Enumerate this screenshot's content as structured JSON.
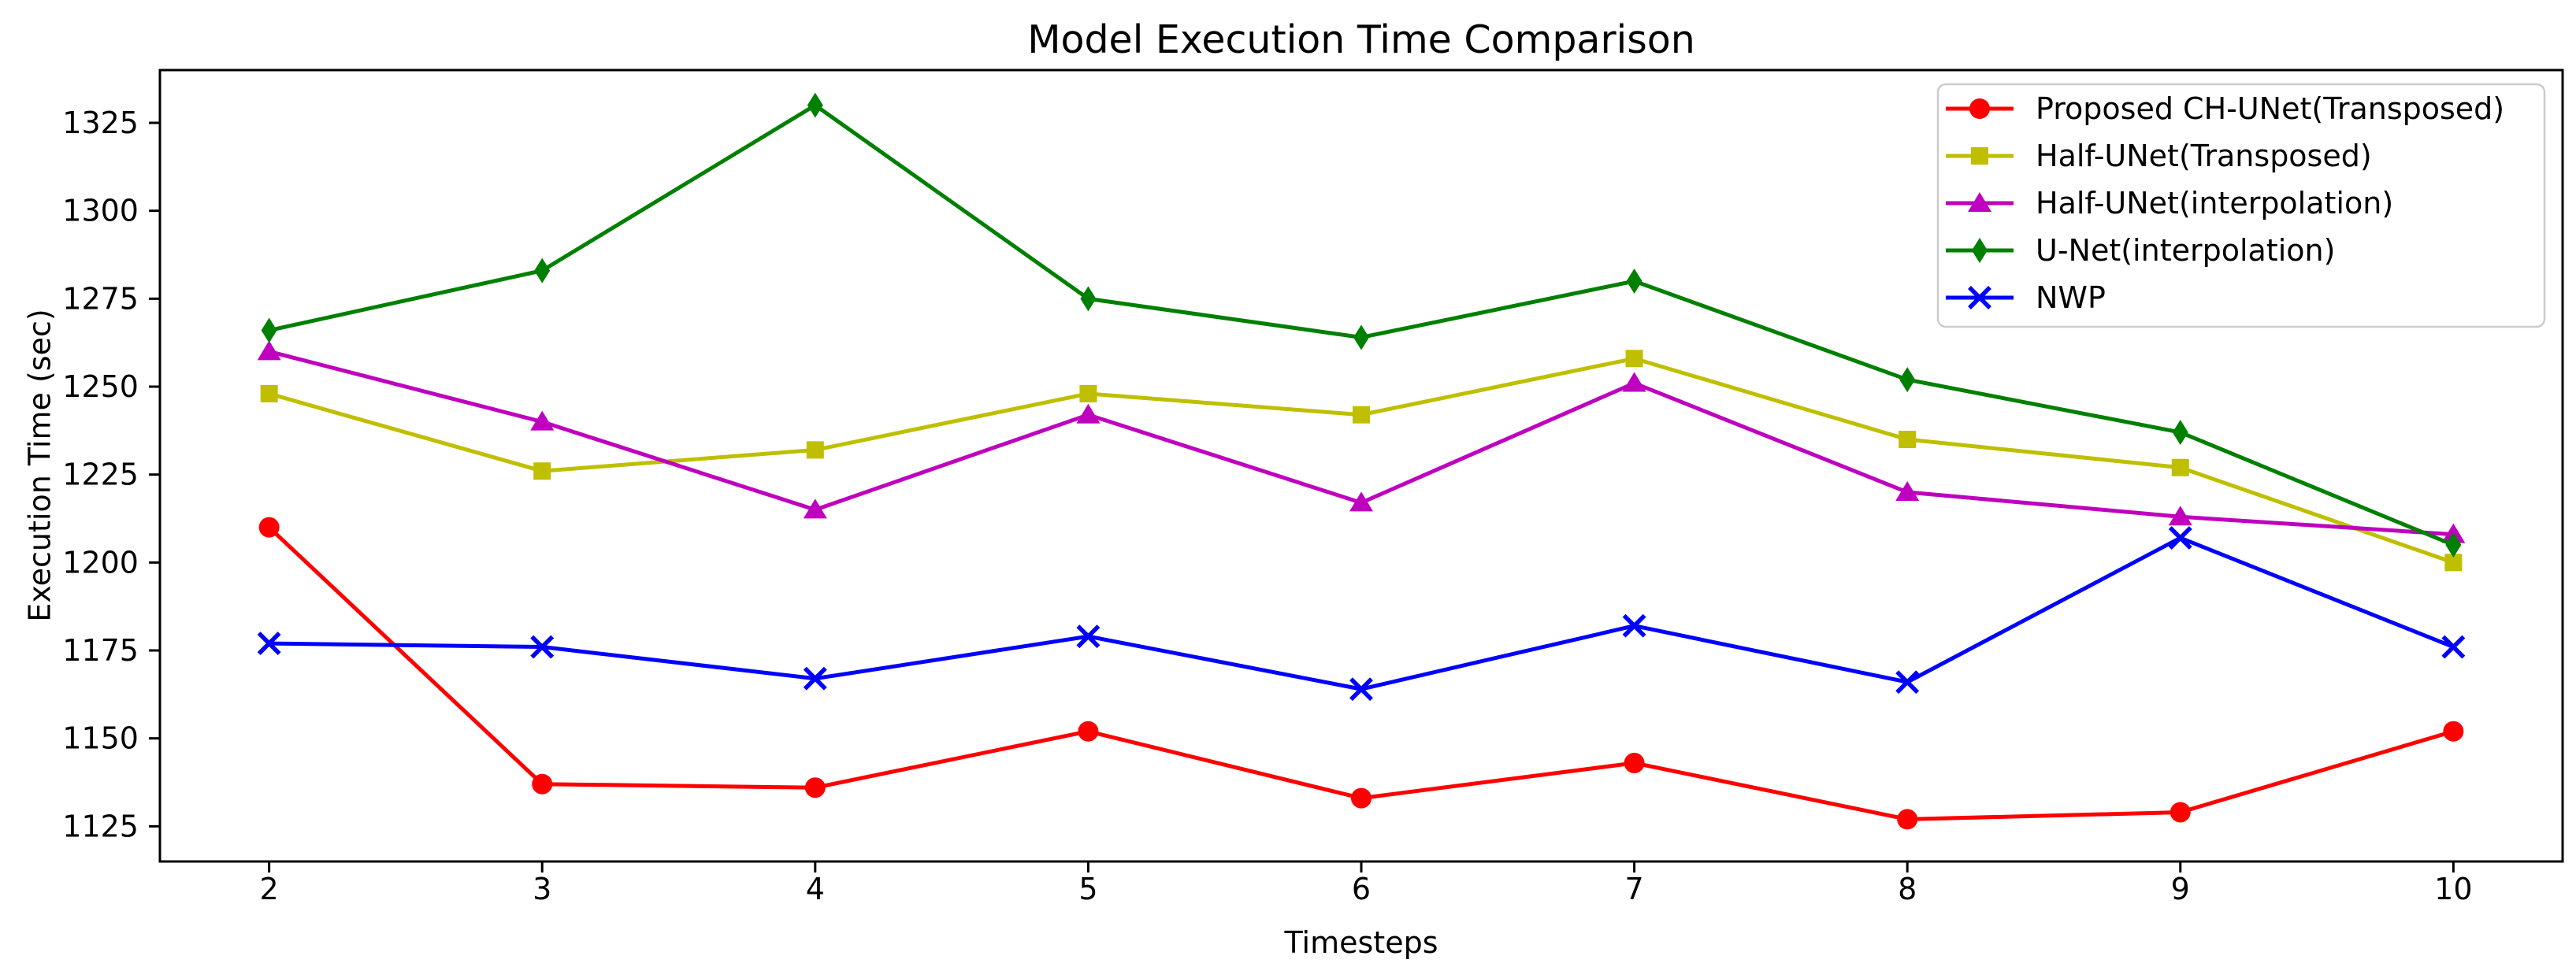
{
  "chart_data": {
    "type": "line",
    "title": "Model Execution Time Comparison",
    "xlabel": "Timesteps",
    "ylabel": "Execution Time (sec)",
    "x": [
      2,
      3,
      4,
      5,
      6,
      7,
      8,
      9,
      10
    ],
    "xticks": [
      2,
      3,
      4,
      5,
      6,
      7,
      8,
      9,
      10
    ],
    "yticks": [
      1125,
      1150,
      1175,
      1200,
      1225,
      1250,
      1275,
      1300,
      1325
    ],
    "xlim": [
      1.6,
      10.4
    ],
    "ylim": [
      1115,
      1340
    ],
    "grid": false,
    "legend_position": "upper right",
    "series": [
      {
        "name": "Proposed CH-UNet(Transposed)",
        "color": "#ff0000",
        "marker": "circle",
        "values": [
          1210,
          1137,
          1136,
          1152,
          1133,
          1143,
          1127,
          1129,
          1152
        ]
      },
      {
        "name": "Half-UNet(Transposed)",
        "color": "#bfbf00",
        "marker": "square",
        "values": [
          1248,
          1226,
          1232,
          1248,
          1242,
          1258,
          1235,
          1227,
          1200
        ]
      },
      {
        "name": "Half-UNet(interpolation)",
        "color": "#bf00bf",
        "marker": "triangle",
        "values": [
          1260,
          1240,
          1215,
          1242,
          1217,
          1251,
          1220,
          1213,
          1208
        ]
      },
      {
        "name": "U-Net(interpolation)",
        "color": "#008000",
        "marker": "diamond",
        "values": [
          1266,
          1283,
          1330,
          1275,
          1264,
          1280,
          1252,
          1237,
          1205
        ]
      },
      {
        "name": "NWP",
        "color": "#0000ff",
        "marker": "x",
        "values": [
          1177,
          1176,
          1167,
          1179,
          1164,
          1182,
          1166,
          1207,
          1176
        ]
      }
    ]
  }
}
